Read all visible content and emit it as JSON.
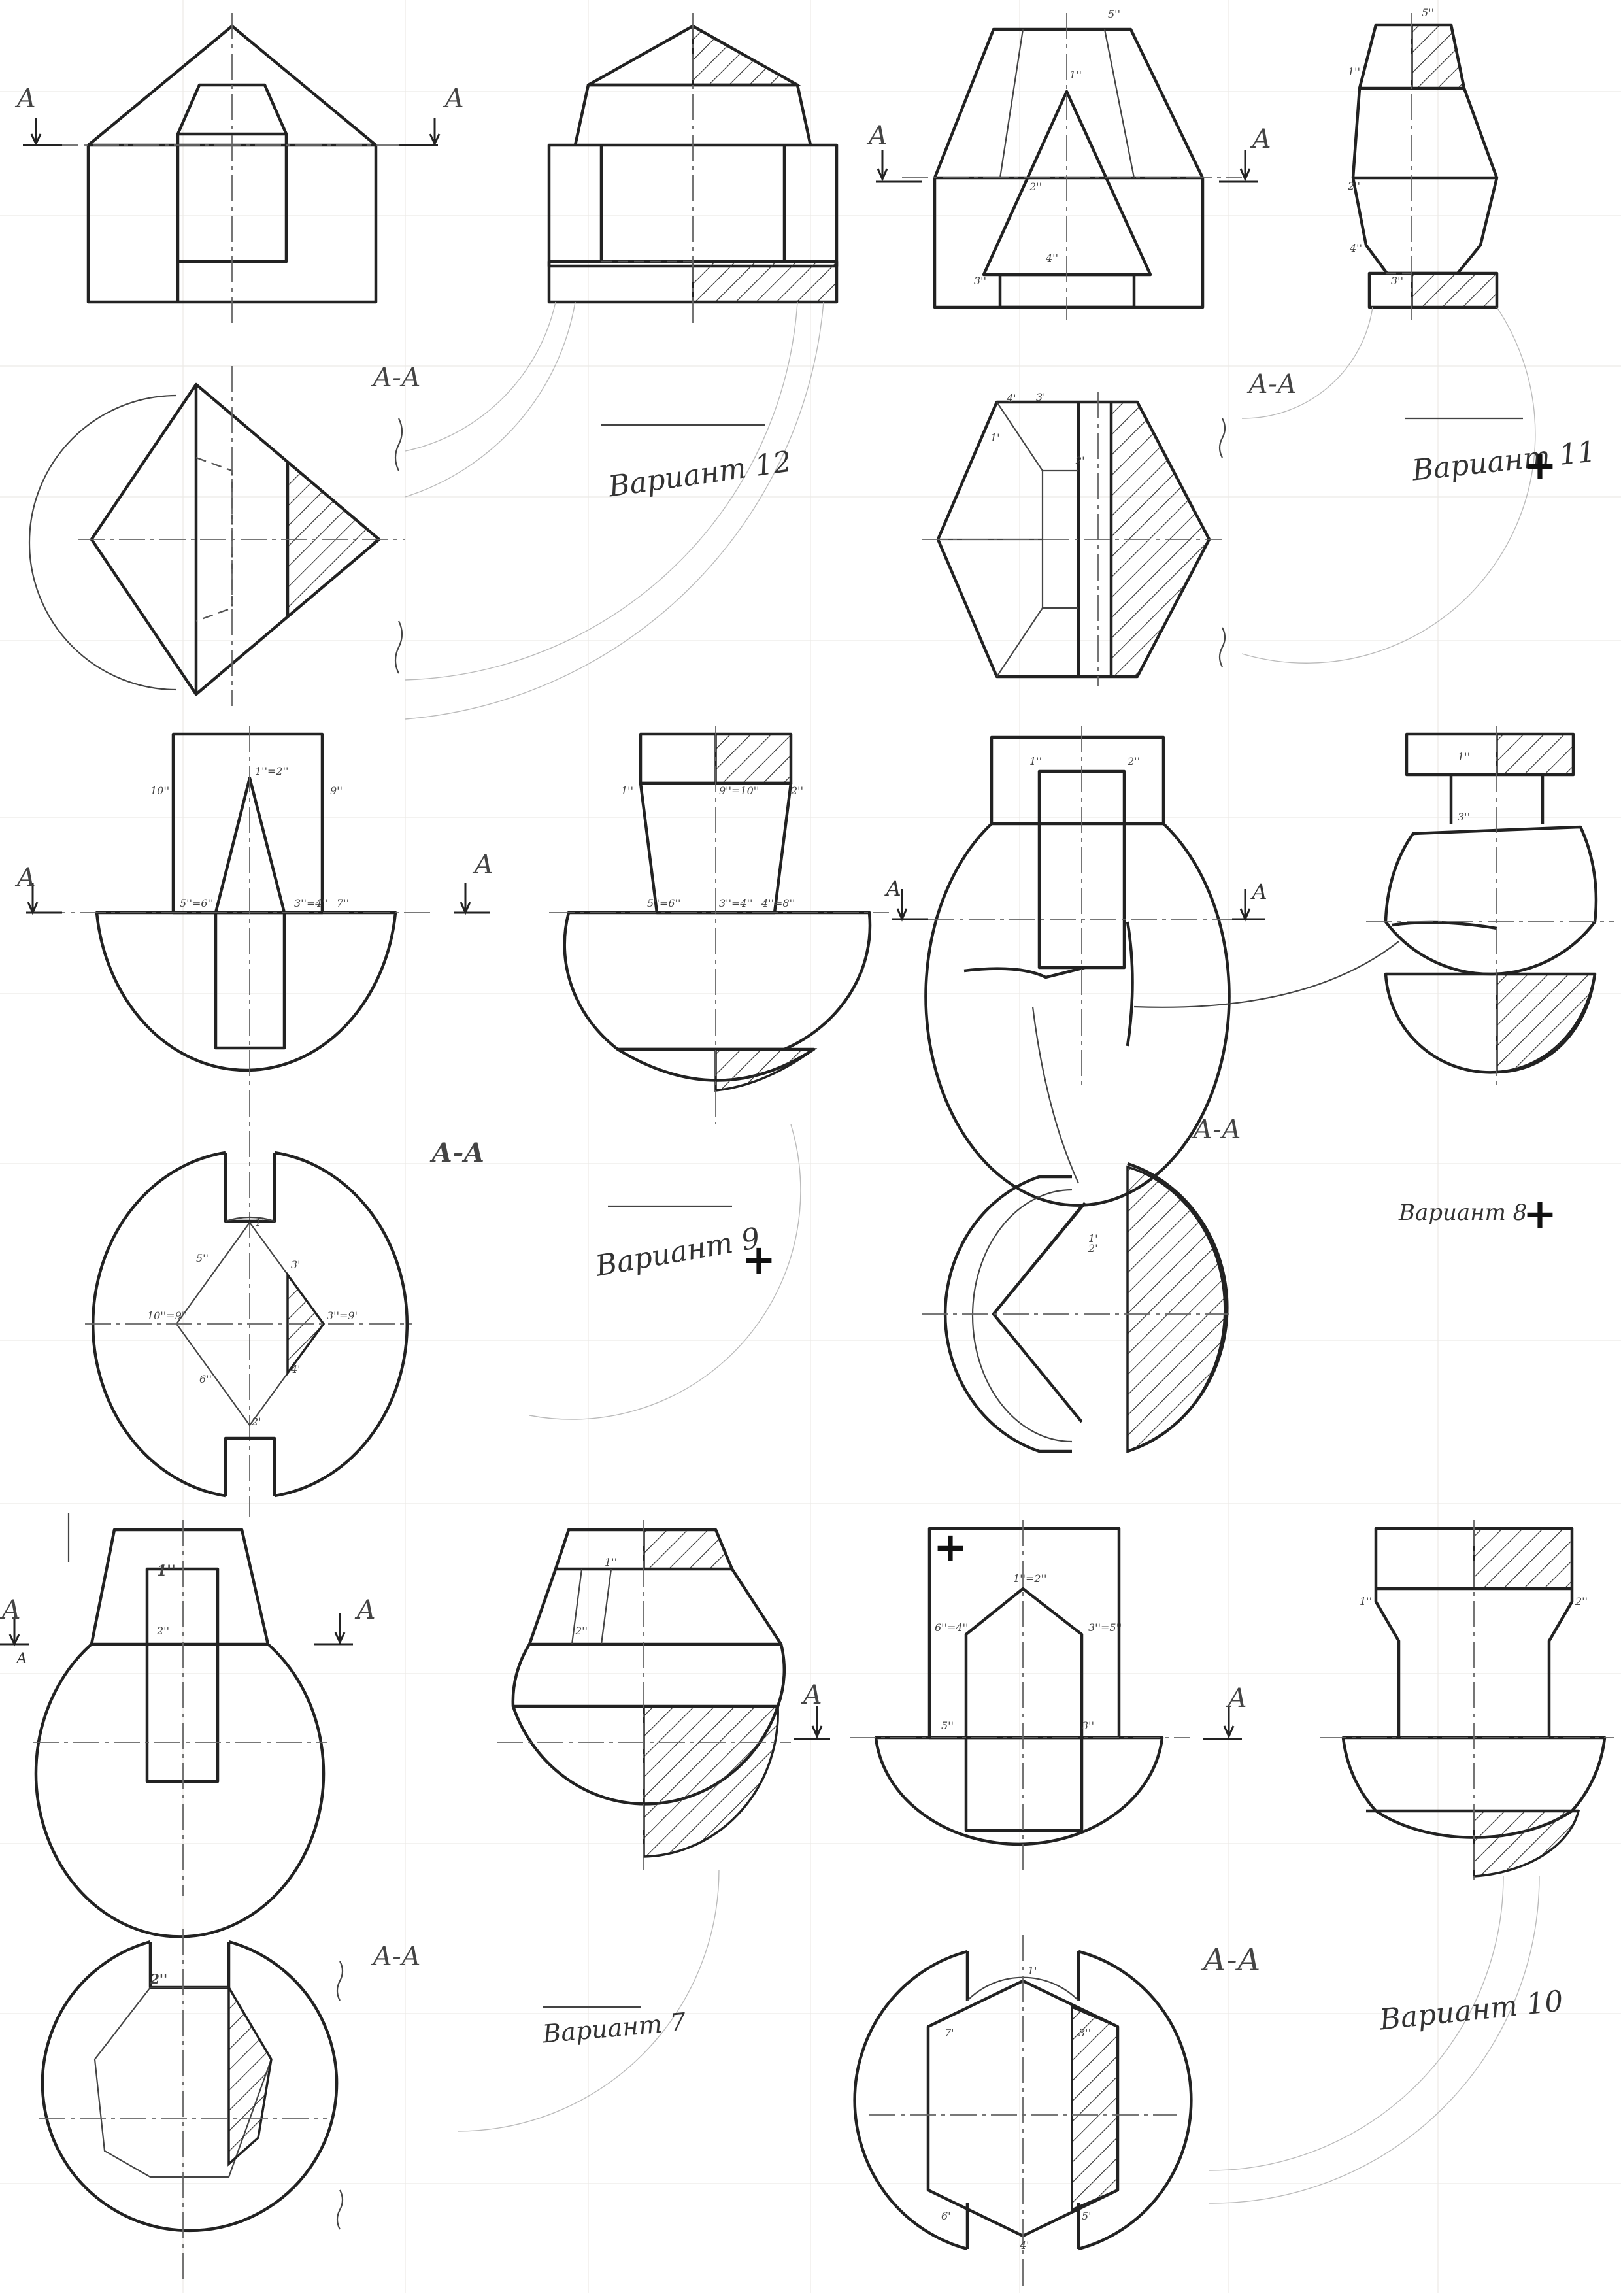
{
  "sheet": {
    "variants": [
      {
        "label": "Вариант 12",
        "mark": ""
      },
      {
        "label": "Вариант 11",
        "mark": "+"
      },
      {
        "label": "Вариант 9",
        "mark": "+"
      },
      {
        "label": "Вариант 8",
        "mark": "+"
      },
      {
        "label": "Вариант 7",
        "mark": ""
      },
      {
        "label": "Вариант 10",
        "mark": ""
      }
    ],
    "section_label": "А-А",
    "cut_letter": "А",
    "cut_letter_small": "А",
    "corner_plus": "+",
    "points": {
      "v11": [
        "5''",
        "1''",
        "2''",
        "4''",
        "3''",
        "5''",
        "1''",
        "2''",
        "4''",
        "3''",
        "4'",
        "3'",
        "1'",
        "2'"
      ],
      "v9": [
        "1''=2''",
        "10''",
        "9''",
        "1''",
        "9''=10''",
        "2''",
        "5''=6''",
        "3''=4''",
        "7''",
        "5''=6''",
        "3''=4''",
        "4''=8''",
        "1'",
        "5''",
        "10''=9''",
        "3'",
        "3''=9'",
        "6''",
        "2'",
        "4'"
      ],
      "v8": [
        "1''",
        "2''",
        "1''",
        "3''",
        "1'",
        "2'"
      ],
      "v7": [
        "1''",
        "2''",
        "1''",
        "2''",
        "2''"
      ],
      "v10": [
        "1''=2''",
        "6''=4''",
        "3''=5''",
        "5''",
        "3''",
        "1''",
        "2''",
        "1'",
        "7'",
        "3''",
        "6'",
        "5'",
        "4'"
      ]
    }
  }
}
